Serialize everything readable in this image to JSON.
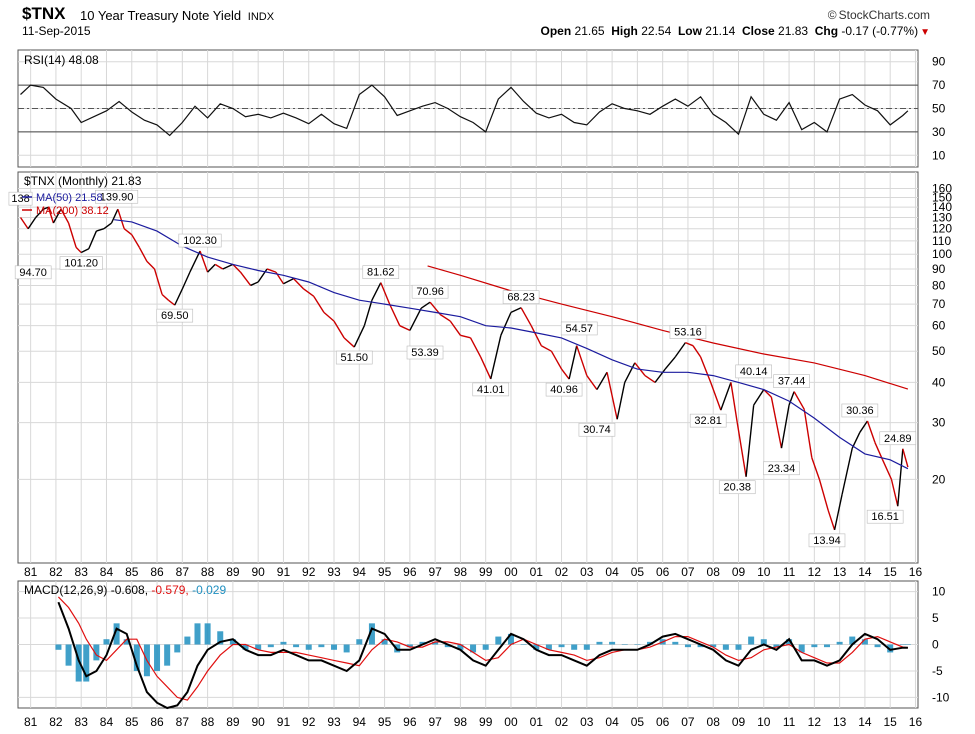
{
  "header": {
    "symbol": "$TNX",
    "description": "10 Year Treasury Note Yield",
    "exchange": "INDX",
    "date": "11-Sep-2015",
    "brand": "StockCharts.com",
    "copyright": "©",
    "open_label": "Open",
    "open": "21.65",
    "high_label": "High",
    "high": "22.54",
    "low_label": "Low",
    "low": "21.14",
    "close_label": "Close",
    "close": "21.83",
    "chg_label": "Chg",
    "chg": "-0.17 (-0.77%)"
  },
  "colors": {
    "up": "#000000",
    "down": "#cc0000",
    "ma50": "#1b1b9e",
    "ma200": "#cc0000",
    "macd": "#000000",
    "signal": "#e01010",
    "hist": "#1f8fc0",
    "grid": "#d8d8d8"
  },
  "chart_data": [
    {
      "type": "line",
      "panel": "rsi",
      "legend": "RSI(14) 48.08",
      "y_ticks": [
        10,
        30,
        50,
        70,
        90
      ],
      "ylim": [
        0,
        100
      ],
      "overbought": 70,
      "oversold": 30,
      "midline": 50,
      "x": [
        1980.6,
        1981.0,
        1981.5,
        1982.0,
        1982.6,
        1983.0,
        1983.5,
        1984.0,
        1984.5,
        1985.0,
        1985.5,
        1986.0,
        1986.5,
        1987.0,
        1987.5,
        1988.0,
        1988.5,
        1989.0,
        1989.5,
        1990.0,
        1990.5,
        1991.0,
        1991.5,
        1992.0,
        1992.5,
        1993.0,
        1993.5,
        1994.0,
        1994.5,
        1995.0,
        1995.5,
        1996.0,
        1996.5,
        1997.0,
        1997.5,
        1998.0,
        1998.5,
        1999.0,
        1999.5,
        2000.0,
        2000.5,
        2001.0,
        2001.5,
        2002.0,
        2002.5,
        2003.0,
        2003.5,
        2004.0,
        2004.5,
        2005.0,
        2005.5,
        2006.0,
        2006.5,
        2007.0,
        2007.5,
        2008.0,
        2008.5,
        2009.0,
        2009.5,
        2010.0,
        2010.5,
        2011.0,
        2011.5,
        2012.0,
        2012.5,
        2013.0,
        2013.5,
        2014.0,
        2014.5,
        2015.0,
        2015.5,
        2015.7
      ],
      "values": [
        62,
        70,
        68,
        58,
        50,
        38,
        43,
        48,
        56,
        47,
        40,
        36,
        27,
        38,
        52,
        42,
        54,
        50,
        43,
        45,
        42,
        46,
        42,
        37,
        45,
        37,
        33,
        62,
        70,
        60,
        44,
        48,
        52,
        55,
        50,
        43,
        38,
        30,
        58,
        68,
        56,
        46,
        42,
        45,
        38,
        36,
        47,
        54,
        50,
        48,
        45,
        52,
        58,
        52,
        60,
        45,
        38,
        28,
        60,
        45,
        40,
        55,
        32,
        38,
        30,
        58,
        62,
        53,
        48,
        36,
        44,
        48
      ]
    },
    {
      "type": "line",
      "panel": "price",
      "legend": "$TNX (Monthly) 21.83",
      "scale": "log",
      "ylim": [
        11,
        180
      ],
      "y_ticks": [
        20,
        30,
        40,
        50,
        60,
        70,
        80,
        90,
        100,
        110,
        120,
        130,
        140,
        150,
        160
      ],
      "x_ticks": [
        "81",
        "82",
        "83",
        "84",
        "85",
        "86",
        "87",
        "88",
        "89",
        "90",
        "91",
        "92",
        "93",
        "94",
        "95",
        "96",
        "97",
        "98",
        "99",
        "00",
        "01",
        "02",
        "03",
        "04",
        "05",
        "06",
        "07",
        "08",
        "09",
        "10",
        "11",
        "12",
        "13",
        "14",
        "15",
        "16"
      ],
      "series": [
        {
          "name": "$TNX",
          "x": [
            1980.6,
            1980.9,
            1981.2,
            1981.5,
            1981.7,
            1981.9,
            1982.2,
            1982.5,
            1982.8,
            1983.0,
            1983.3,
            1983.6,
            1983.9,
            1984.2,
            1984.45,
            1984.7,
            1985.0,
            1985.3,
            1985.6,
            1985.9,
            1986.2,
            1986.45,
            1986.7,
            1987.0,
            1987.3,
            1987.7,
            1988.0,
            1988.3,
            1988.6,
            1989.0,
            1989.3,
            1989.7,
            1990.0,
            1990.35,
            1990.7,
            1991.0,
            1991.4,
            1991.8,
            1992.2,
            1992.6,
            1993.0,
            1993.4,
            1993.8,
            1994.2,
            1994.5,
            1994.85,
            1995.2,
            1995.6,
            1996.0,
            1996.45,
            1996.8,
            1997.2,
            1997.6,
            1998.0,
            1998.4,
            1998.8,
            1999.2,
            1999.6,
            2000.0,
            2000.4,
            2000.8,
            2001.2,
            2001.6,
            2002.0,
            2002.3,
            2002.6,
            2003.0,
            2003.4,
            2003.8,
            2004.2,
            2004.5,
            2004.9,
            2005.3,
            2005.7,
            2006.1,
            2006.5,
            2006.9,
            2007.2,
            2007.5,
            2007.9,
            2008.3,
            2008.7,
            2008.95,
            2009.3,
            2009.6,
            2010.0,
            2010.3,
            2010.7,
            2011.0,
            2011.2,
            2011.6,
            2011.9,
            2012.2,
            2012.55,
            2012.8,
            2013.1,
            2013.5,
            2013.8,
            2014.1,
            2014.4,
            2014.7,
            2015.05,
            2015.3,
            2015.5,
            2015.7
          ],
          "values": [
            130,
            120,
            130,
            138,
            139.9,
            125,
            138,
            125,
            105,
            101.2,
            104,
            118,
            120,
            125,
            138,
            120,
            115,
            105,
            95,
            90,
            75,
            72,
            69.5,
            78,
            88,
            102.3,
            88,
            93,
            90,
            93,
            88,
            80,
            82,
            90,
            88,
            81,
            84,
            78,
            74,
            66,
            62,
            55,
            51.5,
            60,
            72,
            81.62,
            70,
            60,
            58,
            68,
            70.96,
            65,
            62,
            56,
            55,
            48,
            41.01,
            56,
            66,
            68.23,
            60,
            52,
            50,
            44,
            40.96,
            52,
            42,
            38,
            43,
            30.74,
            40,
            46,
            42,
            40,
            44,
            48,
            53.16,
            52,
            48,
            40,
            32.81,
            40,
            30,
            20.38,
            34,
            38,
            36,
            25,
            34,
            37.44,
            33,
            23.34,
            20,
            16,
            13.94,
            18,
            25,
            28,
            30.36,
            26,
            23,
            20,
            16.51,
            24.89,
            21.83
          ]
        },
        {
          "name": "MA(50) 21.58",
          "x": [
            1984.3,
            1985,
            1986,
            1987,
            1988,
            1989,
            1990,
            1991,
            1992,
            1993,
            1994,
            1995,
            1996,
            1997,
            1998,
            1999,
            2000,
            2001,
            2002,
            2003,
            2004,
            2005,
            2006,
            2007,
            2008,
            2009,
            2010,
            2011,
            2012,
            2013,
            2014,
            2015,
            2015.7
          ],
          "values": [
            128,
            126,
            118,
            106,
            98,
            93,
            89,
            86,
            82,
            76,
            72,
            70,
            68,
            66,
            64,
            60,
            59,
            57,
            55,
            51,
            47,
            44,
            43,
            43,
            42,
            40,
            38,
            35,
            31,
            27,
            24,
            23,
            21.58
          ]
        },
        {
          "name": "MA(200) 38.12",
          "x": [
            1996.7,
            1998,
            2000,
            2002,
            2004,
            2006,
            2008,
            2010,
            2012,
            2014,
            2015.7
          ],
          "values": [
            92,
            86,
            77,
            70,
            64,
            58,
            53,
            49,
            46,
            42,
            38.12
          ]
        }
      ],
      "annotations": [
        {
          "x": 1980.6,
          "y": 138,
          "label": "138"
        },
        {
          "x": 1981.1,
          "y": 94.7,
          "label": "94.70"
        },
        {
          "x": 1984.4,
          "y": 139.9,
          "label": "139.90"
        },
        {
          "x": 1983.0,
          "y": 101.2,
          "label": "101.20"
        },
        {
          "x": 1986.7,
          "y": 69.5,
          "label": "69.50"
        },
        {
          "x": 1987.7,
          "y": 102.3,
          "label": "102.30"
        },
        {
          "x": 1994.85,
          "y": 81.62,
          "label": "81.62"
        },
        {
          "x": 1993.8,
          "y": 51.5,
          "label": "51.50"
        },
        {
          "x": 1996.8,
          "y": 70.96,
          "label": "70.96"
        },
        {
          "x": 1996.6,
          "y": 53.39,
          "label": "53.39"
        },
        {
          "x": 1999.2,
          "y": 41.01,
          "label": "41.01"
        },
        {
          "x": 2000.4,
          "y": 68.23,
          "label": "68.23"
        },
        {
          "x": 2002.1,
          "y": 40.96,
          "label": "40.96"
        },
        {
          "x": 2002.7,
          "y": 54.57,
          "label": "54.57"
        },
        {
          "x": 2003.4,
          "y": 30.74,
          "label": "30.74"
        },
        {
          "x": 2007.0,
          "y": 53.16,
          "label": "53.16"
        },
        {
          "x": 2007.8,
          "y": 32.81,
          "label": "32.81"
        },
        {
          "x": 2009.6,
          "y": 40.14,
          "label": "40.14"
        },
        {
          "x": 2008.95,
          "y": 20.38,
          "label": "20.38"
        },
        {
          "x": 2011.1,
          "y": 37.44,
          "label": "37.44"
        },
        {
          "x": 2010.7,
          "y": 23.34,
          "label": "23.34"
        },
        {
          "x": 2013.8,
          "y": 30.36,
          "label": "30.36"
        },
        {
          "x": 2012.5,
          "y": 13.94,
          "label": "13.94"
        },
        {
          "x": 2015.3,
          "y": 24.89,
          "label": "24.89"
        },
        {
          "x": 2014.8,
          "y": 16.51,
          "label": "16.51"
        }
      ]
    },
    {
      "type": "line",
      "panel": "macd",
      "legend_name": "MACD(12,26,9)",
      "legend_vals": [
        "-0.608",
        "-0.579",
        "-0.029"
      ],
      "y_ticks": [
        10,
        5,
        0,
        -5,
        -10
      ],
      "ylim": [
        -12,
        12
      ],
      "x": [
        1982.1,
        1982.5,
        1982.9,
        1983.2,
        1983.6,
        1984.0,
        1984.4,
        1984.8,
        1985.2,
        1985.6,
        1986.0,
        1986.4,
        1986.8,
        1987.2,
        1987.6,
        1988.0,
        1988.5,
        1989.0,
        1989.5,
        1990.0,
        1990.5,
        1991.0,
        1991.5,
        1992.0,
        1992.5,
        1993.0,
        1993.5,
        1994.0,
        1994.5,
        1995.0,
        1995.5,
        1996.0,
        1996.5,
        1997.0,
        1997.5,
        1998.0,
        1998.5,
        1999.0,
        1999.5,
        2000.0,
        2000.5,
        2001.0,
        2001.5,
        2002.0,
        2002.5,
        2003.0,
        2003.5,
        2004.0,
        2004.5,
        2005.0,
        2005.5,
        2006.0,
        2006.5,
        2007.0,
        2007.5,
        2008.0,
        2008.5,
        2009.0,
        2009.5,
        2010.0,
        2010.5,
        2011.0,
        2011.5,
        2012.0,
        2012.5,
        2013.0,
        2013.5,
        2014.0,
        2014.5,
        2015.0,
        2015.5,
        2015.7
      ],
      "series": [
        {
          "name": "MACD",
          "values": [
            8,
            3,
            -3,
            -6,
            -5,
            -2,
            3,
            2,
            -4,
            -9,
            -11,
            -12,
            -11.5,
            -9,
            -4,
            -1,
            0.5,
            1,
            -1,
            -2,
            -2,
            -1,
            -2,
            -3,
            -3,
            -4,
            -5,
            -3,
            3,
            2,
            -1,
            -1,
            0,
            1,
            0,
            -1,
            -3,
            -4,
            -1,
            2,
            1,
            -1,
            -2,
            -2,
            -3,
            -4,
            -2,
            -1,
            -1,
            -1,
            0,
            1.5,
            2,
            1,
            0,
            -1,
            -3,
            -4,
            -1,
            0,
            -1,
            1,
            -3,
            -3,
            -4,
            -3,
            0,
            2,
            1,
            -1,
            -0.6,
            -0.61
          ]
        },
        {
          "name": "Signal",
          "values": [
            9,
            7,
            4,
            1,
            -2,
            -3,
            -1,
            1,
            1,
            -3,
            -6,
            -8,
            -10,
            -10.5,
            -8,
            -5,
            -2,
            0,
            0,
            -1,
            -1.5,
            -1.5,
            -1.5,
            -2,
            -2.5,
            -3,
            -3.5,
            -4,
            -1,
            1,
            0.5,
            -0.5,
            -0.5,
            0.5,
            0.5,
            0,
            -1.5,
            -3,
            -2.5,
            0,
            1,
            0,
            -1,
            -1.5,
            -2,
            -3,
            -2.5,
            -1.5,
            -1,
            -1,
            -0.5,
            0.5,
            1.5,
            1.5,
            0.5,
            -0.5,
            -2,
            -3,
            -2.5,
            -1,
            -0.5,
            0,
            -1.5,
            -2.5,
            -3.5,
            -3.5,
            -1.5,
            1,
            1.5,
            0.5,
            -0.5,
            -0.58
          ]
        },
        {
          "name": "Histogram",
          "values": [
            -1,
            -4,
            -7,
            -7,
            -3,
            1,
            4,
            1,
            -5,
            -6,
            -5,
            -4,
            -1.5,
            1.5,
            4,
            4,
            2.5,
            1,
            -1,
            -1,
            -0.5,
            0.5,
            -0.5,
            -1,
            -0.5,
            -1,
            -1.5,
            1,
            4,
            1,
            -1.5,
            -0.5,
            0.5,
            0.5,
            -0.5,
            -1,
            -1.5,
            -1,
            1.5,
            2,
            0,
            -1,
            -1,
            -0.5,
            -1,
            -1,
            0.5,
            0.5,
            0,
            0,
            0.5,
            1,
            0.5,
            -0.5,
            -0.5,
            -0.5,
            -1,
            -1,
            1.5,
            1,
            -0.5,
            1,
            -1.5,
            -0.5,
            -0.5,
            0.5,
            1.5,
            1,
            -0.5,
            -1.5,
            -0.1,
            -0.03
          ]
        }
      ],
      "x_ticks": [
        "81",
        "82",
        "83",
        "84",
        "85",
        "86",
        "87",
        "88",
        "89",
        "90",
        "91",
        "92",
        "93",
        "94",
        "95",
        "96",
        "97",
        "98",
        "99",
        "00",
        "01",
        "02",
        "03",
        "04",
        "05",
        "06",
        "07",
        "08",
        "09",
        "10",
        "11",
        "12",
        "13",
        "14",
        "15",
        "16"
      ]
    }
  ]
}
